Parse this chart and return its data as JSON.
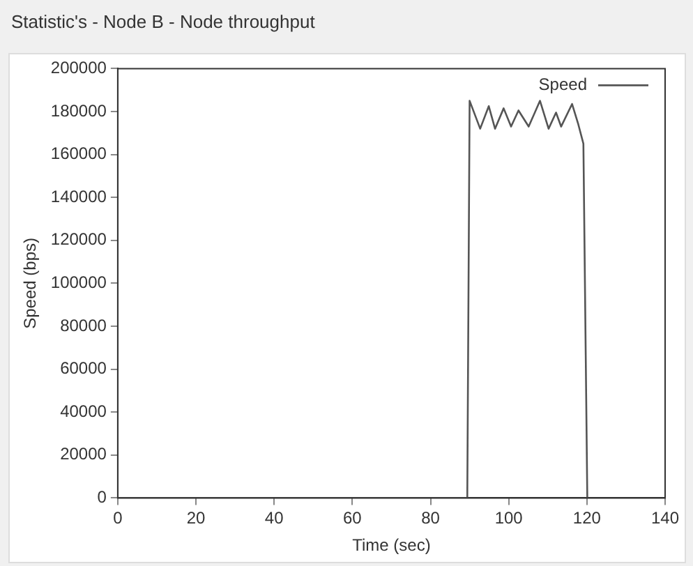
{
  "chart_data": {
    "type": "line",
    "title": "Statistic's - Node B - Node throughput",
    "xlabel": "Time (sec)",
    "ylabel": "Speed (bps)",
    "xlim": [
      0,
      140
    ],
    "xticks": [
      0,
      20,
      40,
      60,
      80,
      100,
      120,
      140
    ],
    "ylim": [
      0,
      200000
    ],
    "yticks": [
      0,
      20000,
      40000,
      60000,
      80000,
      100000,
      120000,
      140000,
      160000,
      180000,
      200000
    ],
    "grid": false,
    "legend": "top right",
    "marker": "none",
    "line_style": "solid",
    "series": [
      {
        "name": "Speed",
        "color": "#555555",
        "x": [
          0,
          89.4,
          90.0,
          92.7,
          94.9,
          96.5,
          98.7,
          100.6,
          102.5,
          105.1,
          108.0,
          110.2,
          112.1,
          113.4,
          116.2,
          117.8,
          119.1,
          120.1
        ],
        "values": [
          0,
          0,
          185000,
          172000,
          182500,
          172000,
          181500,
          173000,
          180500,
          173000,
          185000,
          172000,
          179500,
          173000,
          183500,
          174000,
          165000,
          0
        ]
      }
    ]
  }
}
